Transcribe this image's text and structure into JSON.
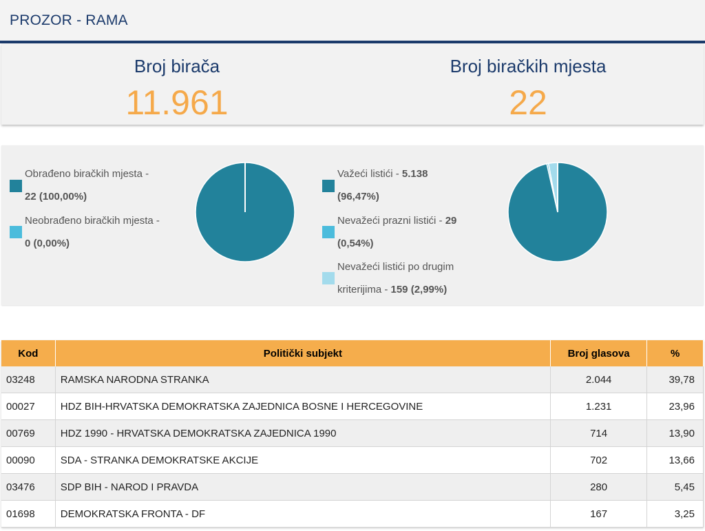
{
  "header": {
    "title": "PROZOR - RAMA"
  },
  "stats": {
    "voters": {
      "label": "Broj birača",
      "value": "11.961"
    },
    "stations": {
      "label": "Broj biračkih mjesta",
      "value": "22"
    }
  },
  "colors": {
    "primary": "#22829b",
    "secondary": "#4bbcdc",
    "tertiary": "#a3dbec",
    "accent": "#f5a94a",
    "navy": "#1b3a6b"
  },
  "pie1": {
    "legend": [
      {
        "line1": "Obrađeno biračkih mjesta -",
        "line2": "22 (100,00%)",
        "value": 100.0,
        "color": "#22829b"
      },
      {
        "line1": "Neobrađeno biračkih mjesta -",
        "line2": "0 (0,00%)",
        "value": 0.0,
        "color": "#4bbcdc"
      }
    ]
  },
  "pie2": {
    "legend": [
      {
        "line1_a": "Važeći listići - ",
        "line1_b": "5.138",
        "line2": "(96,47%)",
        "value": 96.47,
        "color": "#22829b"
      },
      {
        "line1_a": "Nevažeći prazni listići - ",
        "line1_b": "29",
        "line2": "(0,54%)",
        "value": 0.54,
        "color": "#4bbcdc"
      },
      {
        "line1": "Nevažeći listići po drugim",
        "line2_a": "kriterijima - ",
        "line2_b": "159 (2,99%)",
        "value": 2.99,
        "color": "#a3dbec"
      }
    ]
  },
  "table": {
    "headers": {
      "kod": "Kod",
      "subject": "Politički subjekt",
      "votes": "Broj glasova",
      "pct": "%"
    },
    "rows": [
      {
        "kod": "03248",
        "subject": "RAMSKA NARODNA STRANKA",
        "votes": "2.044",
        "pct": "39,78"
      },
      {
        "kod": "00027",
        "subject": "HDZ BIH-HRVATSKA DEMOKRATSKA ZAJEDNICA BOSNE I HERCEGOVINE",
        "votes": "1.231",
        "pct": "23,96"
      },
      {
        "kod": "00769",
        "subject": "HDZ 1990 - HRVATSKA DEMOKRATSKA ZAJEDNICA 1990",
        "votes": "714",
        "pct": "13,90"
      },
      {
        "kod": "00090",
        "subject": "SDA - STRANKA DEMOKRATSKE AKCIJE",
        "votes": "702",
        "pct": "13,66"
      },
      {
        "kod": "03476",
        "subject": "SDP BIH - NAROD I PRAVDA",
        "votes": "280",
        "pct": "5,45"
      },
      {
        "kod": "01698",
        "subject": "DEMOKRATSKA FRONTA - DF",
        "votes": "167",
        "pct": "3,25"
      }
    ]
  }
}
